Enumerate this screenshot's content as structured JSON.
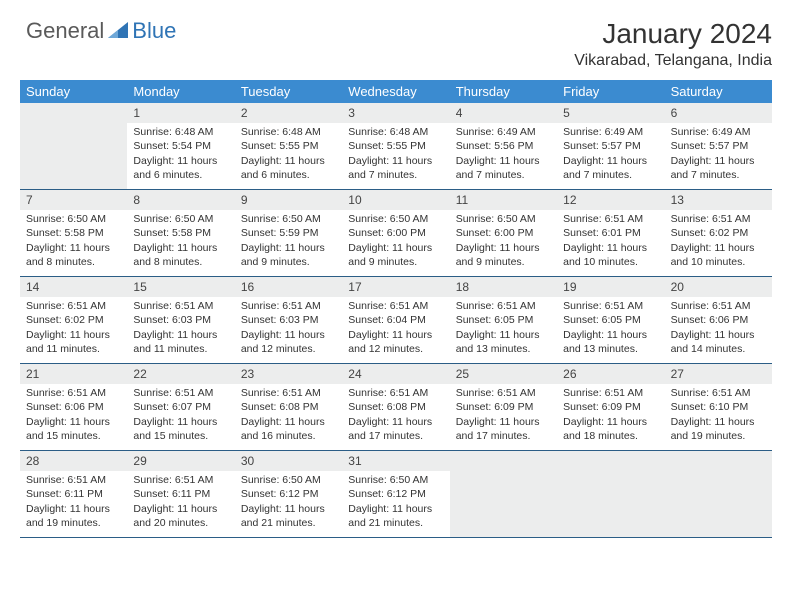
{
  "brand": {
    "part1": "General",
    "part2": "Blue"
  },
  "title": "January 2024",
  "location": "Vikarabad, Telangana, India",
  "colors": {
    "header_bg": "#3b8bd0",
    "header_text": "#ffffff",
    "daynum_bg": "#eceded",
    "row_border": "#2b5d86",
    "text": "#333333",
    "logo_gray": "#5a5a5a",
    "logo_blue": "#2f74b5"
  },
  "day_names": [
    "Sunday",
    "Monday",
    "Tuesday",
    "Wednesday",
    "Thursday",
    "Friday",
    "Saturday"
  ],
  "layout": {
    "columns": 7,
    "rows": 5,
    "first_weekday_offset": 1
  },
  "days": [
    {
      "n": "1",
      "sunrise": "Sunrise: 6:48 AM",
      "sunset": "Sunset: 5:54 PM",
      "daylight": "Daylight: 11 hours and 6 minutes."
    },
    {
      "n": "2",
      "sunrise": "Sunrise: 6:48 AM",
      "sunset": "Sunset: 5:55 PM",
      "daylight": "Daylight: 11 hours and 6 minutes."
    },
    {
      "n": "3",
      "sunrise": "Sunrise: 6:48 AM",
      "sunset": "Sunset: 5:55 PM",
      "daylight": "Daylight: 11 hours and 7 minutes."
    },
    {
      "n": "4",
      "sunrise": "Sunrise: 6:49 AM",
      "sunset": "Sunset: 5:56 PM",
      "daylight": "Daylight: 11 hours and 7 minutes."
    },
    {
      "n": "5",
      "sunrise": "Sunrise: 6:49 AM",
      "sunset": "Sunset: 5:57 PM",
      "daylight": "Daylight: 11 hours and 7 minutes."
    },
    {
      "n": "6",
      "sunrise": "Sunrise: 6:49 AM",
      "sunset": "Sunset: 5:57 PM",
      "daylight": "Daylight: 11 hours and 7 minutes."
    },
    {
      "n": "7",
      "sunrise": "Sunrise: 6:50 AM",
      "sunset": "Sunset: 5:58 PM",
      "daylight": "Daylight: 11 hours and 8 minutes."
    },
    {
      "n": "8",
      "sunrise": "Sunrise: 6:50 AM",
      "sunset": "Sunset: 5:58 PM",
      "daylight": "Daylight: 11 hours and 8 minutes."
    },
    {
      "n": "9",
      "sunrise": "Sunrise: 6:50 AM",
      "sunset": "Sunset: 5:59 PM",
      "daylight": "Daylight: 11 hours and 9 minutes."
    },
    {
      "n": "10",
      "sunrise": "Sunrise: 6:50 AM",
      "sunset": "Sunset: 6:00 PM",
      "daylight": "Daylight: 11 hours and 9 minutes."
    },
    {
      "n": "11",
      "sunrise": "Sunrise: 6:50 AM",
      "sunset": "Sunset: 6:00 PM",
      "daylight": "Daylight: 11 hours and 9 minutes."
    },
    {
      "n": "12",
      "sunrise": "Sunrise: 6:51 AM",
      "sunset": "Sunset: 6:01 PM",
      "daylight": "Daylight: 11 hours and 10 minutes."
    },
    {
      "n": "13",
      "sunrise": "Sunrise: 6:51 AM",
      "sunset": "Sunset: 6:02 PM",
      "daylight": "Daylight: 11 hours and 10 minutes."
    },
    {
      "n": "14",
      "sunrise": "Sunrise: 6:51 AM",
      "sunset": "Sunset: 6:02 PM",
      "daylight": "Daylight: 11 hours and 11 minutes."
    },
    {
      "n": "15",
      "sunrise": "Sunrise: 6:51 AM",
      "sunset": "Sunset: 6:03 PM",
      "daylight": "Daylight: 11 hours and 11 minutes."
    },
    {
      "n": "16",
      "sunrise": "Sunrise: 6:51 AM",
      "sunset": "Sunset: 6:03 PM",
      "daylight": "Daylight: 11 hours and 12 minutes."
    },
    {
      "n": "17",
      "sunrise": "Sunrise: 6:51 AM",
      "sunset": "Sunset: 6:04 PM",
      "daylight": "Daylight: 11 hours and 12 minutes."
    },
    {
      "n": "18",
      "sunrise": "Sunrise: 6:51 AM",
      "sunset": "Sunset: 6:05 PM",
      "daylight": "Daylight: 11 hours and 13 minutes."
    },
    {
      "n": "19",
      "sunrise": "Sunrise: 6:51 AM",
      "sunset": "Sunset: 6:05 PM",
      "daylight": "Daylight: 11 hours and 13 minutes."
    },
    {
      "n": "20",
      "sunrise": "Sunrise: 6:51 AM",
      "sunset": "Sunset: 6:06 PM",
      "daylight": "Daylight: 11 hours and 14 minutes."
    },
    {
      "n": "21",
      "sunrise": "Sunrise: 6:51 AM",
      "sunset": "Sunset: 6:06 PM",
      "daylight": "Daylight: 11 hours and 15 minutes."
    },
    {
      "n": "22",
      "sunrise": "Sunrise: 6:51 AM",
      "sunset": "Sunset: 6:07 PM",
      "daylight": "Daylight: 11 hours and 15 minutes."
    },
    {
      "n": "23",
      "sunrise": "Sunrise: 6:51 AM",
      "sunset": "Sunset: 6:08 PM",
      "daylight": "Daylight: 11 hours and 16 minutes."
    },
    {
      "n": "24",
      "sunrise": "Sunrise: 6:51 AM",
      "sunset": "Sunset: 6:08 PM",
      "daylight": "Daylight: 11 hours and 17 minutes."
    },
    {
      "n": "25",
      "sunrise": "Sunrise: 6:51 AM",
      "sunset": "Sunset: 6:09 PM",
      "daylight": "Daylight: 11 hours and 17 minutes."
    },
    {
      "n": "26",
      "sunrise": "Sunrise: 6:51 AM",
      "sunset": "Sunset: 6:09 PM",
      "daylight": "Daylight: 11 hours and 18 minutes."
    },
    {
      "n": "27",
      "sunrise": "Sunrise: 6:51 AM",
      "sunset": "Sunset: 6:10 PM",
      "daylight": "Daylight: 11 hours and 19 minutes."
    },
    {
      "n": "28",
      "sunrise": "Sunrise: 6:51 AM",
      "sunset": "Sunset: 6:11 PM",
      "daylight": "Daylight: 11 hours and 19 minutes."
    },
    {
      "n": "29",
      "sunrise": "Sunrise: 6:51 AM",
      "sunset": "Sunset: 6:11 PM",
      "daylight": "Daylight: 11 hours and 20 minutes."
    },
    {
      "n": "30",
      "sunrise": "Sunrise: 6:50 AM",
      "sunset": "Sunset: 6:12 PM",
      "daylight": "Daylight: 11 hours and 21 minutes."
    },
    {
      "n": "31",
      "sunrise": "Sunrise: 6:50 AM",
      "sunset": "Sunset: 6:12 PM",
      "daylight": "Daylight: 11 hours and 21 minutes."
    }
  ]
}
